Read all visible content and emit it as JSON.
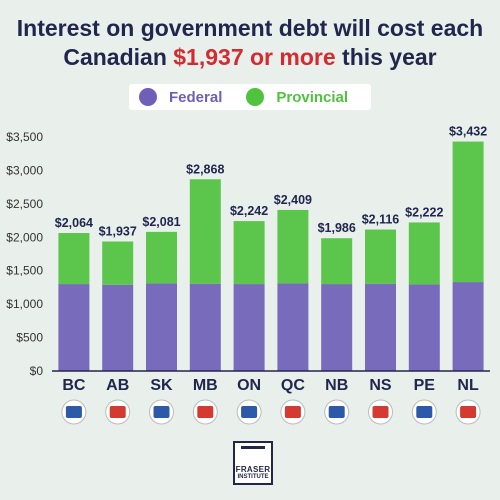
{
  "title": {
    "line1": "Interest on government debt will cost each",
    "line2_prefix": "Canadian ",
    "line2_highlight": "$1,937 or more",
    "line2_suffix": " this year"
  },
  "legend": [
    {
      "label": "Federal",
      "color": "#6f5fb7"
    },
    {
      "label": "Provincial",
      "color": "#4fc23e"
    }
  ],
  "logo": {
    "line1": "FRASER",
    "line2": "INSTITUTE"
  },
  "colors": {
    "federal": "#6f5fb7",
    "provincial": "#4fc23e",
    "title": "#22264d",
    "accent": "#d42a30",
    "axis": "#22264d"
  },
  "chart_data": {
    "type": "bar",
    "stacked": true,
    "categories": [
      "BC",
      "AB",
      "SK",
      "MB",
      "ON",
      "QC",
      "NB",
      "NS",
      "PE",
      "NL"
    ],
    "series": [
      {
        "name": "Federal",
        "values": [
          1300,
          1290,
          1310,
          1305,
          1300,
          1310,
          1300,
          1305,
          1295,
          1330
        ]
      },
      {
        "name": "Provincial",
        "values": [
          764,
          647,
          771,
          1563,
          942,
          1099,
          686,
          811,
          927,
          2102
        ]
      }
    ],
    "totals": [
      2064,
      1937,
      2081,
      2868,
      2242,
      2409,
      1986,
      2116,
      2222,
      3432
    ],
    "total_labels": [
      "$2,064",
      "$1,937",
      "$2,081",
      "$2,868",
      "$2,242",
      "$2,409",
      "$1,986",
      "$2,116",
      "$2,222",
      "$3,432"
    ],
    "yticks": [
      0,
      500,
      1000,
      1500,
      2000,
      2500,
      3000,
      3500
    ],
    "ytick_labels": [
      "$0",
      "$500",
      "$1,000",
      "$1,500",
      "$2,000",
      "$2,500",
      "$3,000",
      "$3,500"
    ],
    "ylim": [
      0,
      3500
    ],
    "grid": false,
    "legend_position": "top"
  }
}
